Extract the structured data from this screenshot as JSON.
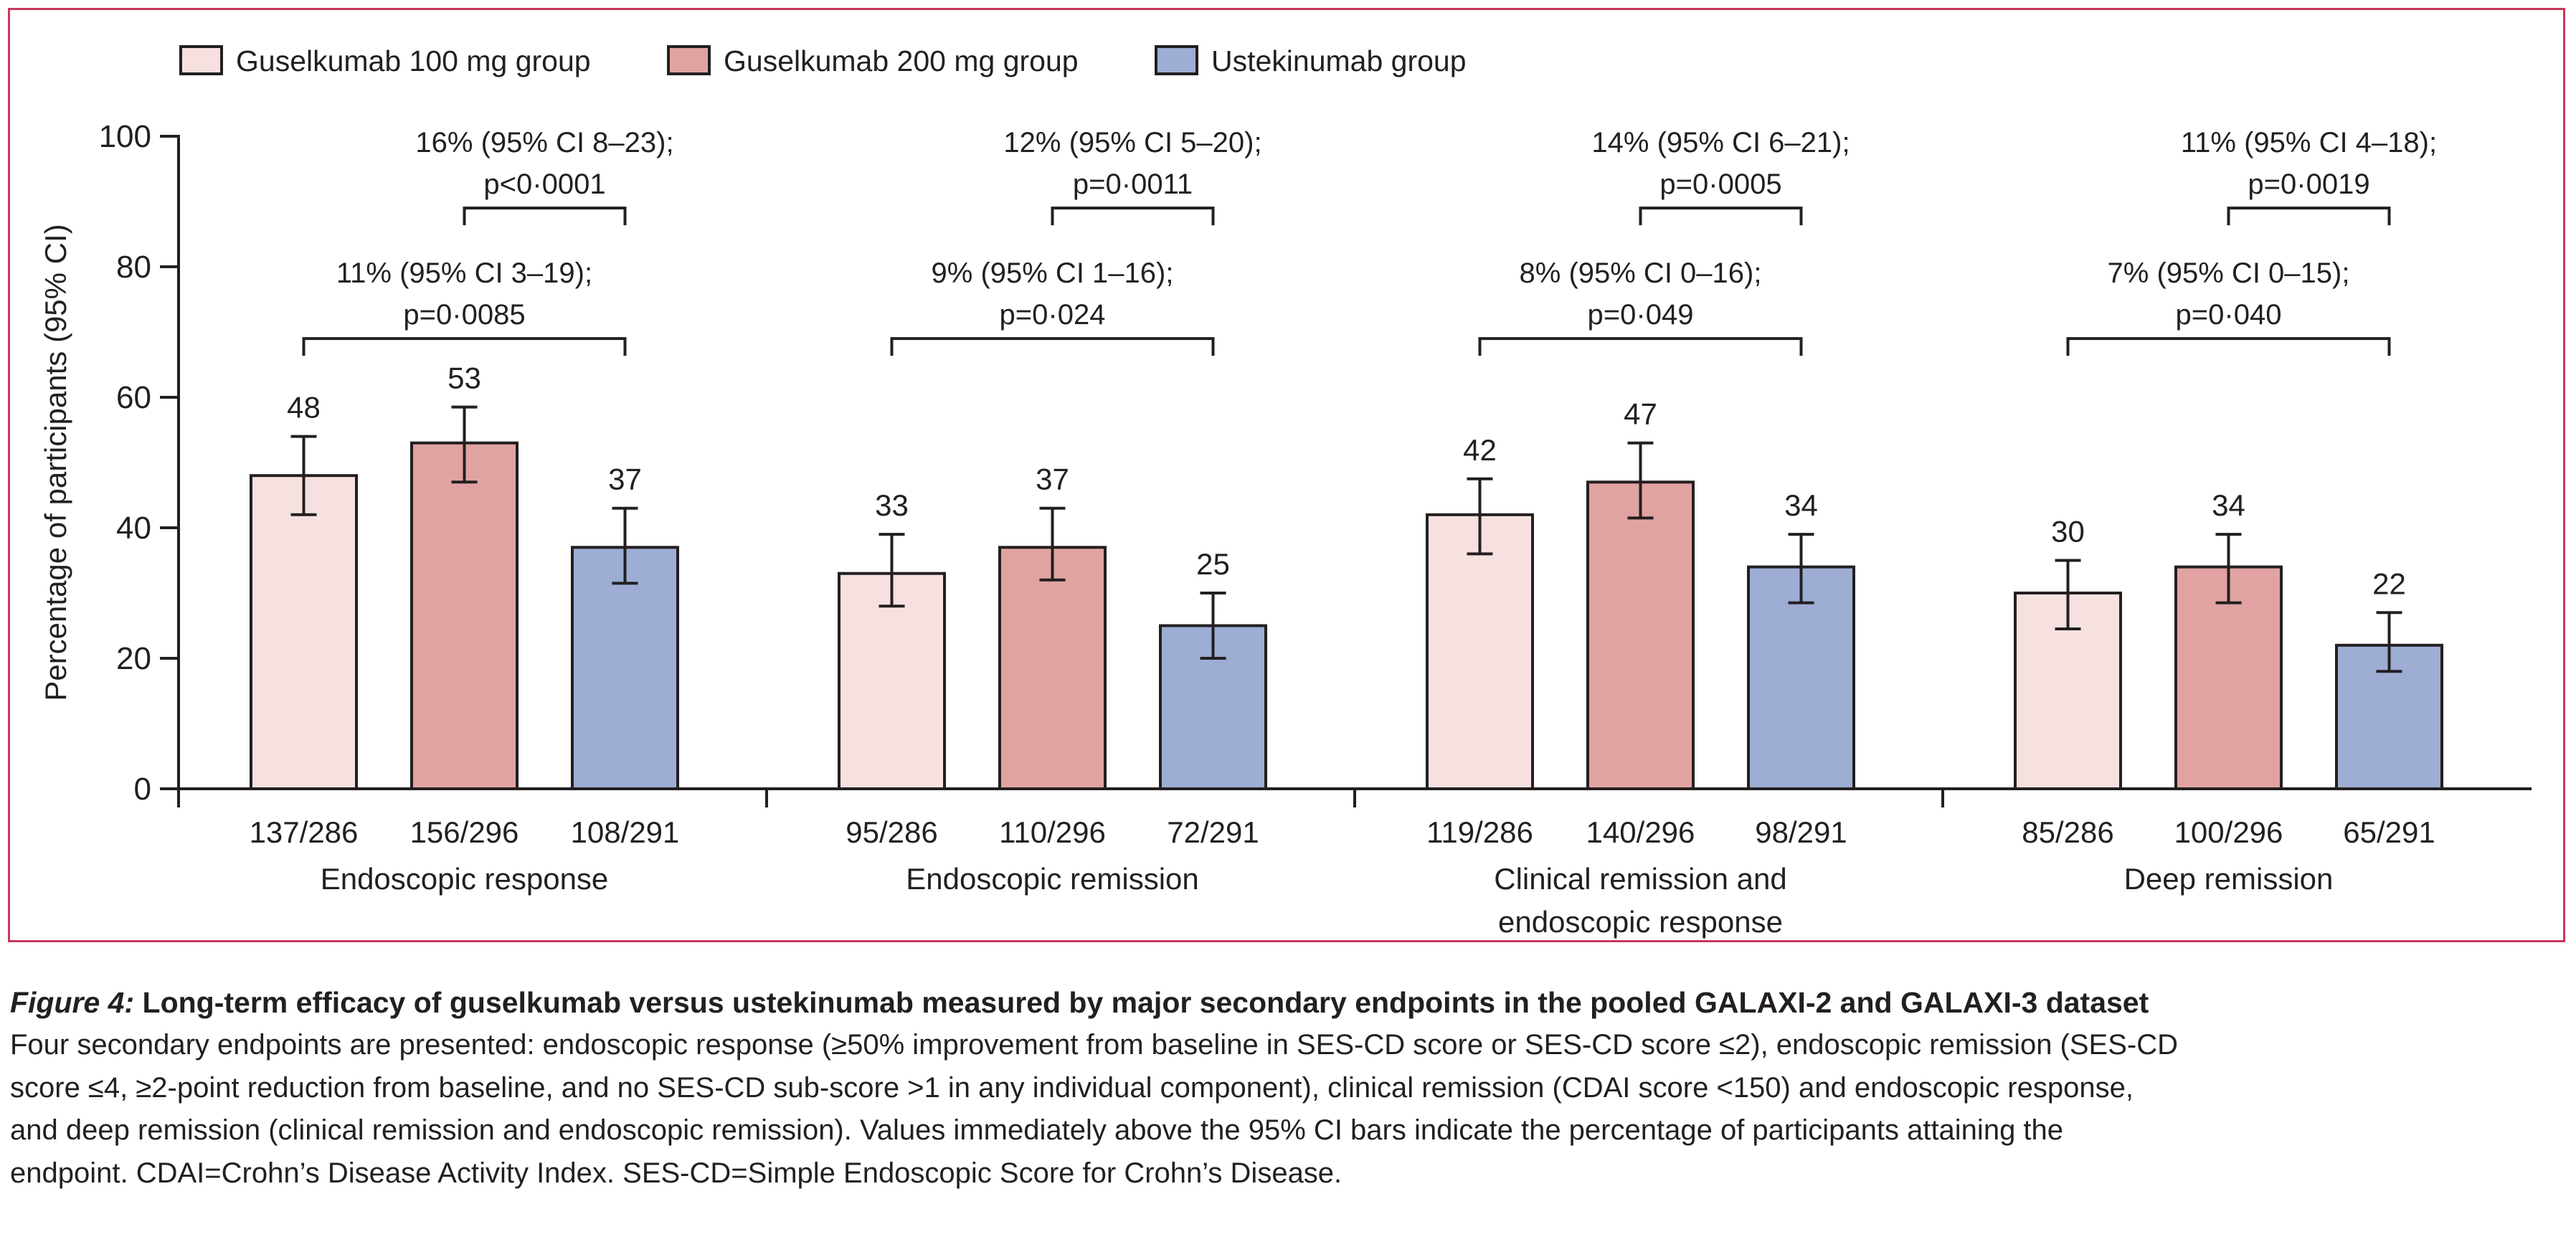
{
  "chart_data": {
    "type": "bar",
    "ylabel": "Percentage of participants (95% CI)",
    "ylim": [
      0,
      100
    ],
    "yticks": [
      0,
      20,
      40,
      60,
      80,
      100
    ],
    "grid": false,
    "legend_position": "top-left",
    "series": [
      {
        "name": "Guselkumab 100 mg group",
        "color": "#f6e1e0"
      },
      {
        "name": "Guselkumab 200 mg group",
        "color": "#e1a3a2"
      },
      {
        "name": "Ustekinumab group",
        "color": "#9dadd4"
      }
    ],
    "groups": [
      {
        "label": [
          "Endoscopic response"
        ],
        "values": [
          48,
          53,
          37
        ],
        "ci": [
          [
            42,
            54
          ],
          [
            47,
            58.5
          ],
          [
            31.5,
            43
          ]
        ],
        "value_labels": [
          "48",
          "53",
          "37"
        ],
        "counts": [
          "137/286",
          "156/296",
          "108/291"
        ],
        "comparisons": [
          {
            "from": 0,
            "to": 2,
            "level": 69,
            "lines": [
              "11% (95% CI 3–19);",
              "p=0·0085"
            ]
          },
          {
            "from": 1,
            "to": 2,
            "level": 89,
            "lines": [
              "16% (95% CI 8–23);",
              "p<0·0001"
            ]
          }
        ]
      },
      {
        "label": [
          "Endoscopic remission"
        ],
        "values": [
          33,
          37,
          25
        ],
        "ci": [
          [
            28,
            39
          ],
          [
            32,
            43
          ],
          [
            20,
            30
          ]
        ],
        "value_labels": [
          "33",
          "37",
          "25"
        ],
        "counts": [
          "95/286",
          "110/296",
          "72/291"
        ],
        "comparisons": [
          {
            "from": 0,
            "to": 2,
            "level": 69,
            "lines": [
              "9% (95% CI 1–16);",
              "p=0·024"
            ]
          },
          {
            "from": 1,
            "to": 2,
            "level": 89,
            "lines": [
              "12% (95% CI 5–20);",
              "p=0·0011"
            ]
          }
        ]
      },
      {
        "label": [
          "Clinical remission and",
          "endoscopic response"
        ],
        "values": [
          42,
          47,
          34
        ],
        "ci": [
          [
            36,
            47.5
          ],
          [
            41.5,
            53
          ],
          [
            28.5,
            39
          ]
        ],
        "value_labels": [
          "42",
          "47",
          "34"
        ],
        "counts": [
          "119/286",
          "140/296",
          "98/291"
        ],
        "comparisons": [
          {
            "from": 0,
            "to": 2,
            "level": 69,
            "lines": [
              "8% (95% CI 0–16);",
              "p=0·049"
            ]
          },
          {
            "from": 1,
            "to": 2,
            "level": 89,
            "lines": [
              "14% (95% CI 6–21);",
              "p=0·0005"
            ]
          }
        ]
      },
      {
        "label": [
          "Deep remission"
        ],
        "values": [
          30,
          34,
          22
        ],
        "ci": [
          [
            24.5,
            35
          ],
          [
            28.5,
            39
          ],
          [
            18,
            27
          ]
        ],
        "value_labels": [
          "30",
          "34",
          "22"
        ],
        "counts": [
          "85/286",
          "100/296",
          "65/291"
        ],
        "comparisons": [
          {
            "from": 0,
            "to": 2,
            "level": 69,
            "lines": [
              "7% (95% CI 0–15);",
              "p=0·040"
            ]
          },
          {
            "from": 1,
            "to": 2,
            "level": 89,
            "lines": [
              "11% (95% CI 4–18);",
              "p=0·0019"
            ]
          }
        ]
      }
    ]
  },
  "caption": {
    "figure_label": "Figure 4:",
    "title": "Long-term efficacy of guselkumab versus ustekinumab measured by major secondary endpoints in the pooled GALAXI-2 and GALAXI-3 dataset",
    "lines": [
      "Four secondary endpoints are presented: endoscopic response (≥50% improvement from baseline in SES-CD score or SES-CD score ≤2), endoscopic remission (SES-CD",
      "score ≤4, ≥2-point reduction from baseline, and no SES-CD sub-score >1 in any individual component), clinical remission (CDAI score <150) and endoscopic response,",
      "and deep remission (clinical remission and endoscopic remission). Values immediately above the 95% CI bars indicate the percentage of participants attaining the",
      "endpoint. CDAI=Crohn’s Disease Activity Index. SES-CD=Simple Endoscopic Score for Crohn’s Disease."
    ]
  }
}
